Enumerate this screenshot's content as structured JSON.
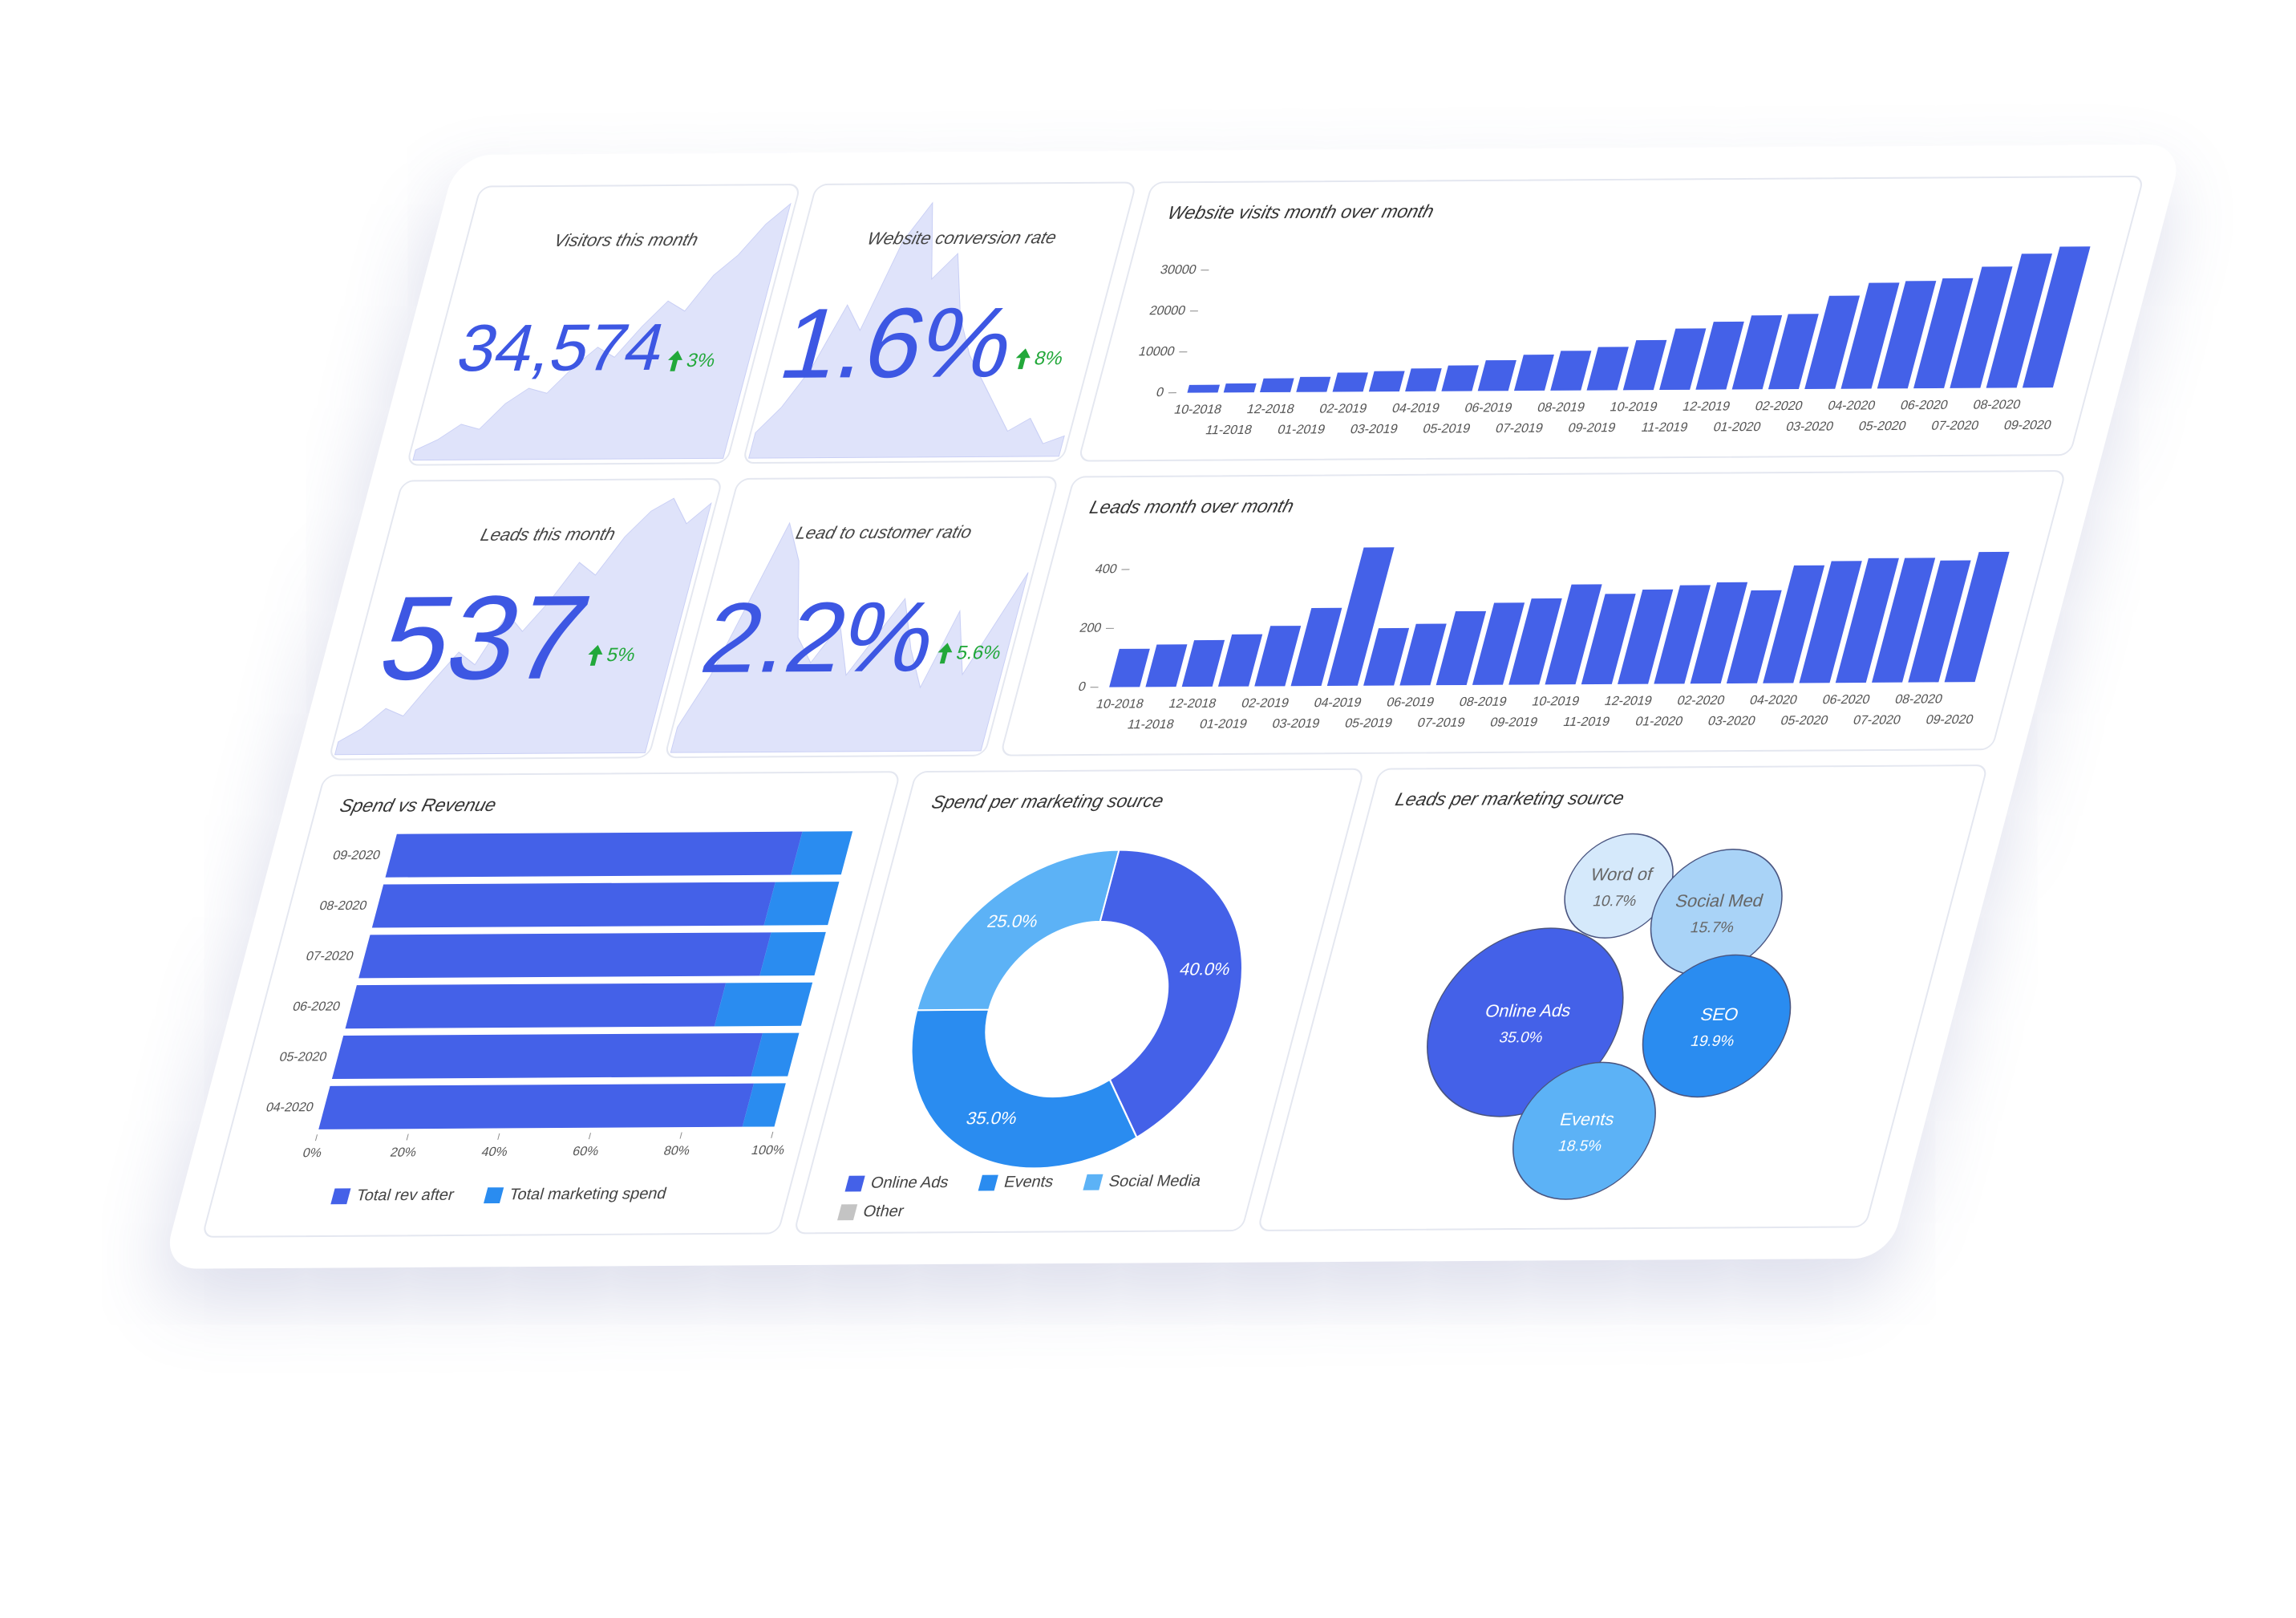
{
  "kpis": [
    {
      "title": "Visitors this month",
      "value": "34,574",
      "change": "3%",
      "trend": [
        4,
        8,
        14,
        12,
        22,
        28,
        26,
        36,
        44,
        40,
        52,
        62,
        58,
        72,
        80,
        92,
        100
      ],
      "ylim": [
        0,
        100
      ]
    },
    {
      "title": "Website conversion rate",
      "value": "1.6%",
      "change": "8%",
      "trend": [
        10,
        20,
        35,
        60,
        50,
        85,
        100,
        70,
        80,
        55,
        40,
        30,
        20,
        10,
        15,
        5,
        8
      ],
      "ylim": [
        0,
        100
      ]
    },
    {
      "title": "Leads this month",
      "value": "537",
      "change": "5%",
      "trend": [
        5,
        10,
        18,
        15,
        28,
        40,
        35,
        55,
        48,
        60,
        75,
        70,
        85,
        95,
        100,
        90,
        98
      ],
      "ylim": [
        0,
        100
      ]
    },
    {
      "title": "Lead to customer ratio",
      "value": "2.2%",
      "change": "5.6%",
      "trend": [
        10,
        30,
        60,
        90,
        75,
        45,
        35,
        50,
        30,
        45,
        60,
        40,
        25,
        55,
        30,
        50,
        70
      ],
      "ylim": [
        0,
        100
      ]
    }
  ],
  "chart_data": [
    {
      "type": "bar",
      "title": "Website visits month over month",
      "categories": [
        "10-2018",
        "11-2018",
        "12-2018",
        "01-2019",
        "02-2019",
        "03-2019",
        "04-2019",
        "05-2019",
        "06-2019",
        "07-2019",
        "08-2019",
        "09-2019",
        "10-2019",
        "11-2019",
        "12-2019",
        "01-2020",
        "02-2020",
        "03-2020",
        "04-2020",
        "05-2020",
        "06-2020",
        "07-2020",
        "08-2020",
        "09-2020"
      ],
      "values": [
        1900,
        2200,
        3400,
        3700,
        4700,
        5000,
        5600,
        6300,
        7500,
        8800,
        9700,
        10600,
        12200,
        15000,
        16600,
        18100,
        18400,
        22800,
        25900,
        26300,
        26900,
        29700,
        32800,
        34500
      ],
      "color": "#4461e8",
      "ylim": [
        0,
        36000
      ],
      "yticks": [
        0,
        10000,
        20000,
        30000
      ]
    },
    {
      "type": "bar",
      "title": "Leads month over month",
      "categories": [
        "10-2018",
        "11-2018",
        "12-2018",
        "01-2019",
        "02-2019",
        "03-2019",
        "04-2019",
        "05-2019",
        "06-2019",
        "07-2019",
        "08-2019",
        "09-2019",
        "10-2019",
        "11-2019",
        "12-2019",
        "01-2020",
        "02-2020",
        "03-2020",
        "04-2020",
        "05-2020",
        "06-2020",
        "07-2020",
        "08-2020",
        "09-2020"
      ],
      "values": [
        130,
        144,
        158,
        177,
        205,
        265,
        470,
        195,
        209,
        251,
        279,
        293,
        340,
        307,
        321,
        335,
        344,
        316,
        400,
        414,
        423,
        423,
        414,
        442
      ],
      "color": "#4461e8",
      "ylim": [
        0,
        500
      ],
      "yticks": [
        0,
        200,
        400
      ]
    },
    {
      "type": "bar",
      "orientation": "horizontal",
      "stacked": true,
      "title": "Spend vs Revenue",
      "categories": [
        "09-2020",
        "08-2020",
        "07-2020",
        "06-2020",
        "05-2020",
        "04-2020"
      ],
      "series": [
        {
          "name": "Total rev after",
          "color": "#4461e8",
          "values": [
            89,
            86,
            88,
            81,
            92,
            93
          ]
        },
        {
          "name": "Total marketing spend",
          "color": "#2a8cf0",
          "values": [
            11,
            14,
            12,
            19,
            8,
            7
          ]
        }
      ],
      "xlim": [
        0,
        100
      ],
      "xticks": [
        {
          "value": 0,
          "label": "0%"
        },
        {
          "value": 20,
          "label": "20%"
        },
        {
          "value": 40,
          "label": "40%"
        },
        {
          "value": 60,
          "label": "60%"
        },
        {
          "value": 80,
          "label": "80%"
        },
        {
          "value": 100,
          "label": "100%"
        }
      ],
      "legend": "bottom"
    },
    {
      "type": "donut",
      "title": "Spend per marketing source",
      "categories": [
        "Online Ads",
        "Events",
        "Social Media",
        "Other"
      ],
      "values": [
        40,
        35,
        25,
        0
      ],
      "value_labels": [
        "40.0%",
        "35.0%",
        "25.0%",
        null
      ],
      "colors": [
        "#4461e8",
        "#2a8cf0",
        "#5cb2f6",
        "#c4c4c4"
      ],
      "legend": "bottom"
    },
    {
      "type": "bubble",
      "title": "Leads per marketing source",
      "categories": [
        "Online Ads",
        "SEO",
        "Events",
        "Social Med",
        "Word of"
      ],
      "values": [
        35,
        19.9,
        18.5,
        15.7,
        10.7
      ],
      "value_labels": [
        "35.0%",
        "19.9%",
        "18.5%",
        "15.7%",
        "10.7%"
      ],
      "colors": [
        "#4461e8",
        "#2a8cf0",
        "#5cb2f6",
        "#a9d3f7",
        "#d5e9fb"
      ]
    }
  ]
}
